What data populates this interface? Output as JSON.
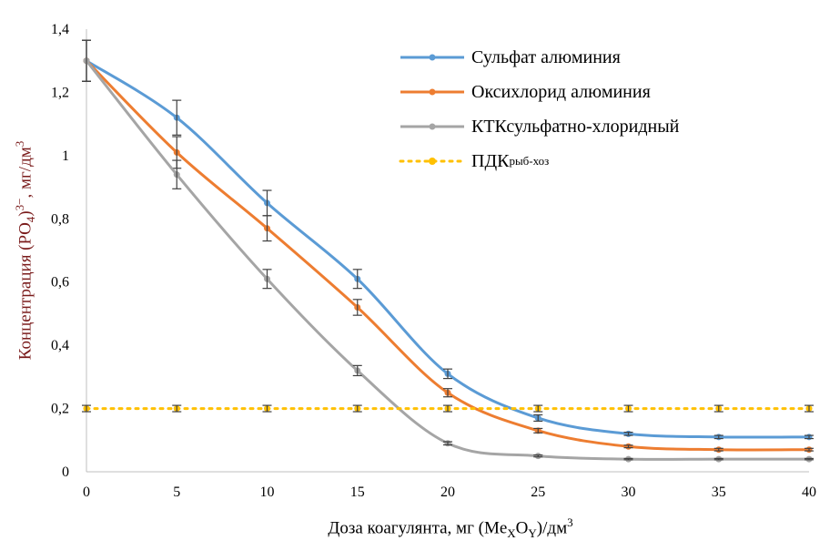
{
  "chart_data": {
    "type": "line",
    "x": [
      0,
      5,
      10,
      15,
      20,
      25,
      30,
      35,
      40
    ],
    "xlim": [
      0,
      40
    ],
    "ylim": [
      0,
      1.4
    ],
    "xticks": [
      "0",
      "5",
      "10",
      "15",
      "20",
      "25",
      "30",
      "35",
      "40"
    ],
    "yticks": [
      "0",
      "0,2",
      "0,4",
      "0,6",
      "0,8",
      "1",
      "1,2",
      "1,4"
    ],
    "ytick_values": [
      0,
      0.2,
      0.4,
      0.6,
      0.8,
      1.0,
      1.2,
      1.4
    ],
    "xlabel": {
      "main": "Доза коагулянта, мг (Me",
      "sub1": "X",
      "mid": "O",
      "sub2": "Y",
      "end": ")/дм",
      "sup": "3"
    },
    "ylabel": {
      "main": "Концентрация (PO",
      "sub": "4",
      "close": ")",
      "sup1": "3−",
      "end": ", мг/дм",
      "sup2": "3"
    },
    "grid": false,
    "legend_position": "top-right",
    "series": [
      {
        "name": "Сульфат алюминия",
        "color": "#5B9BD5",
        "style": "solid",
        "values": [
          1.3,
          1.12,
          0.85,
          0.61,
          0.31,
          0.17,
          0.12,
          0.11,
          0.11
        ],
        "errors": [
          0.065,
          0.055,
          0.04,
          0.03,
          0.015,
          0.01,
          0.005,
          0.005,
          0.005
        ]
      },
      {
        "name": "Оксихлорид алюминия",
        "color": "#ED7D31",
        "style": "solid",
        "values": [
          1.3,
          1.01,
          0.77,
          0.52,
          0.25,
          0.13,
          0.08,
          0.07,
          0.07
        ],
        "errors": [
          0.065,
          0.05,
          0.04,
          0.025,
          0.013,
          0.007,
          0.004,
          0.004,
          0.004
        ]
      },
      {
        "name": "КТКсульфатно-хлоридный",
        "color": "#A5A5A5",
        "style": "solid",
        "values": [
          1.3,
          0.94,
          0.61,
          0.32,
          0.09,
          0.05,
          0.04,
          0.04,
          0.04
        ],
        "errors": [
          0.065,
          0.045,
          0.03,
          0.016,
          0.005,
          0.003,
          0.002,
          0.002,
          0.002
        ]
      },
      {
        "name": "ПДК",
        "name_sub": "рыб-хоз",
        "color": "#FFC000",
        "style": "dotted",
        "values": [
          0.2,
          0.2,
          0.2,
          0.2,
          0.2,
          0.2,
          0.2,
          0.2,
          0.2
        ],
        "errors": [
          0.01,
          0.01,
          0.01,
          0.01,
          0.01,
          0.01,
          0.01,
          0.01,
          0.01
        ]
      }
    ]
  }
}
